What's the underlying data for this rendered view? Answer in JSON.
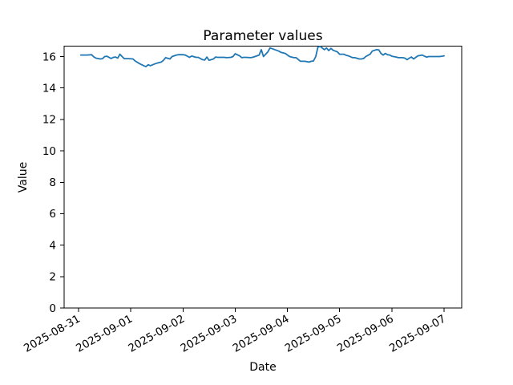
{
  "figure": {
    "background": "#ffffff",
    "text_color": "#000000"
  },
  "chart_data": {
    "type": "line",
    "title": "Parameter values",
    "xlabel": "Date",
    "ylabel": "Value",
    "grid": false,
    "legend": null,
    "line_color": "#1f77b4",
    "y_ticks": [
      0,
      2,
      4,
      6,
      8,
      10,
      12,
      14,
      16
    ],
    "ylim": [
      0,
      16.66
    ],
    "x_tick_labels": [
      "2025-08-31",
      "2025-09-01",
      "2025-09-02",
      "2025-09-03",
      "2025-09-04",
      "2025-09-05",
      "2025-09-06",
      "2025-09-07"
    ],
    "x_tick_hours": [
      0,
      24,
      48,
      72,
      96,
      120,
      144,
      168
    ],
    "x_unit": "hours since 2025-08-31 00:00",
    "xlim_hours": [
      -7.4,
      175.9
    ],
    "series": [
      {
        "color": "#1f77b4",
        "points": [
          [
            1,
            16.1
          ],
          [
            4,
            16.1
          ],
          [
            6,
            16.12
          ],
          [
            7,
            15.98
          ],
          [
            8,
            15.9
          ],
          [
            10,
            15.85
          ],
          [
            11,
            15.87
          ],
          [
            12,
            16.0
          ],
          [
            13,
            16.02
          ],
          [
            15,
            15.88
          ],
          [
            16,
            15.95
          ],
          [
            17,
            15.97
          ],
          [
            18,
            15.9
          ],
          [
            19,
            16.15
          ],
          [
            20,
            16.0
          ],
          [
            21,
            15.87
          ],
          [
            23,
            15.87
          ],
          [
            25,
            15.85
          ],
          [
            26,
            15.72
          ],
          [
            28,
            15.55
          ],
          [
            30,
            15.42
          ],
          [
            31,
            15.36
          ],
          [
            32,
            15.48
          ],
          [
            33,
            15.42
          ],
          [
            35,
            15.53
          ],
          [
            36,
            15.58
          ],
          [
            38,
            15.65
          ],
          [
            39,
            15.76
          ],
          [
            40,
            15.93
          ],
          [
            42,
            15.85
          ],
          [
            43,
            16.0
          ],
          [
            45,
            16.1
          ],
          [
            46,
            16.12
          ],
          [
            48,
            16.12
          ],
          [
            49,
            16.1
          ],
          [
            51,
            15.95
          ],
          [
            52,
            16.03
          ],
          [
            54,
            15.95
          ],
          [
            55,
            15.95
          ],
          [
            57,
            15.8
          ],
          [
            58,
            15.78
          ],
          [
            59,
            15.97
          ],
          [
            60,
            15.76
          ],
          [
            62,
            15.85
          ],
          [
            63,
            15.97
          ],
          [
            64,
            15.95
          ],
          [
            65,
            15.95
          ],
          [
            67,
            15.95
          ],
          [
            68,
            15.93
          ],
          [
            70,
            15.95
          ],
          [
            71,
            16.0
          ],
          [
            72,
            16.18
          ],
          [
            74,
            16.05
          ],
          [
            75,
            15.93
          ],
          [
            76,
            15.95
          ],
          [
            77,
            15.95
          ],
          [
            79,
            15.93
          ],
          [
            80,
            15.95
          ],
          [
            82,
            16.05
          ],
          [
            83,
            16.1
          ],
          [
            84,
            16.44
          ],
          [
            85,
            16.0
          ],
          [
            87,
            16.3
          ],
          [
            88,
            16.55
          ],
          [
            89,
            16.5
          ],
          [
            91,
            16.4
          ],
          [
            92,
            16.35
          ],
          [
            93,
            16.27
          ],
          [
            95,
            16.2
          ],
          [
            96,
            16.1
          ],
          [
            97,
            16.0
          ],
          [
            99,
            15.93
          ],
          [
            100,
            15.93
          ],
          [
            102,
            15.7
          ],
          [
            103,
            15.7
          ],
          [
            104,
            15.7
          ],
          [
            106,
            15.65
          ],
          [
            107,
            15.7
          ],
          [
            108,
            15.72
          ],
          [
            109,
            16.0
          ],
          [
            110,
            16.6
          ],
          [
            111,
            16.65
          ],
          [
            113,
            16.44
          ],
          [
            114,
            16.55
          ],
          [
            115,
            16.38
          ],
          [
            116,
            16.52
          ],
          [
            117,
            16.4
          ],
          [
            118,
            16.35
          ],
          [
            119,
            16.3
          ],
          [
            120,
            16.15
          ],
          [
            122,
            16.15
          ],
          [
            123,
            16.08
          ],
          [
            124,
            16.05
          ],
          [
            126,
            15.93
          ],
          [
            127,
            15.93
          ],
          [
            129,
            15.85
          ],
          [
            130,
            15.85
          ],
          [
            131,
            15.88
          ],
          [
            132,
            16.0
          ],
          [
            134,
            16.15
          ],
          [
            135,
            16.35
          ],
          [
            137,
            16.44
          ],
          [
            138,
            16.42
          ],
          [
            139,
            16.2
          ],
          [
            140,
            16.1
          ],
          [
            141,
            16.2
          ],
          [
            142,
            16.12
          ],
          [
            143,
            16.1
          ],
          [
            144,
            16.02
          ],
          [
            146,
            15.97
          ],
          [
            147,
            15.93
          ],
          [
            149,
            15.93
          ],
          [
            150,
            15.9
          ],
          [
            151,
            15.8
          ],
          [
            152,
            15.9
          ],
          [
            153,
            15.97
          ],
          [
            154,
            15.85
          ],
          [
            155,
            15.95
          ],
          [
            156,
            16.05
          ],
          [
            158,
            16.1
          ],
          [
            159,
            16.02
          ],
          [
            160,
            15.97
          ],
          [
            161,
            16.0
          ],
          [
            163,
            16.0
          ],
          [
            164,
            16.0
          ],
          [
            166,
            16.0
          ],
          [
            167,
            16.02
          ],
          [
            168,
            16.05
          ]
        ]
      }
    ]
  }
}
